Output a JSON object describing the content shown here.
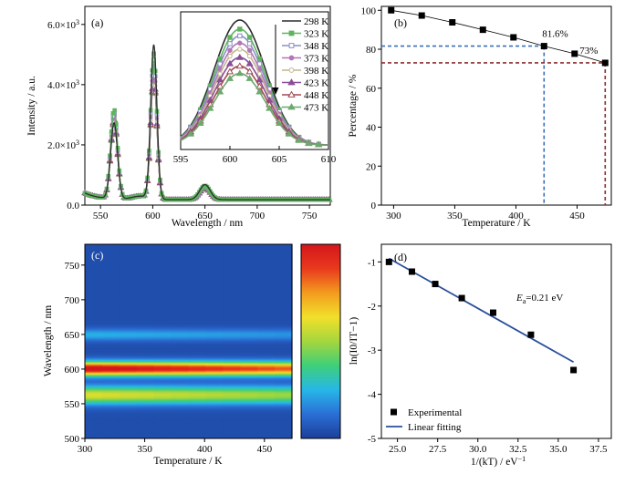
{
  "chart_data": [
    {
      "type": "line",
      "panel_label": "(a)",
      "xlabel": "Wavelength / nm",
      "ylabel": "Intensity / a.u.",
      "xlim": [
        535,
        770
      ],
      "ylim": [
        0,
        6600
      ],
      "x_ticks": [
        "550",
        "600",
        "650",
        "700",
        "750"
      ],
      "y_ticks": [
        {
          "base": "0.0",
          "exp": ""
        },
        {
          "base": "2.0×10",
          "exp": "3"
        },
        {
          "base": "4.0×10",
          "exp": "3"
        },
        {
          "base": "6.0×10",
          "exp": "3"
        }
      ],
      "peaks": [
        {
          "center": 563,
          "width": 3.3
        },
        {
          "center": 601,
          "width": 3.0
        },
        {
          "center": 650,
          "width": 5.0
        }
      ],
      "series": [
        {
          "name": "298 K",
          "color": "#2d2d2d",
          "marker": "none",
          "peak_heights": [
            2700,
            5300,
            680
          ]
        },
        {
          "name": "323 K",
          "color": "#5fb35f",
          "marker": "square",
          "peak_heights": [
            3150,
            5000,
            640
          ]
        },
        {
          "name": "348 K",
          "color": "#8a8fc4",
          "marker": "square-open",
          "peak_heights": [
            3050,
            4800,
            620
          ]
        },
        {
          "name": "373 K",
          "color": "#b277b7",
          "marker": "circle",
          "peak_heights": [
            2950,
            4600,
            600
          ]
        },
        {
          "name": "398 K",
          "color": "#c2b58e",
          "marker": "circle-open",
          "peak_heights": [
            2880,
            4450,
            590
          ]
        },
        {
          "name": "423 K",
          "color": "#8a4f96",
          "marker": "triangle",
          "peak_heights": [
            2820,
            4300,
            580
          ]
        },
        {
          "name": "448 K",
          "color": "#a04a50",
          "marker": "triangle-open",
          "peak_heights": [
            2770,
            4200,
            570
          ]
        },
        {
          "name": "473 K",
          "color": "#6ea86e",
          "marker": "triangle-fill",
          "peak_heights": [
            2740,
            4150,
            560
          ]
        }
      ],
      "inset": {
        "xlim": [
          595,
          610
        ],
        "x_ticks": [
          "595",
          "600",
          "605",
          "610"
        ],
        "peak_center": 601,
        "peak_width": 2.6,
        "series_heights": [
          6300,
          5860,
          5530,
          5180,
          4880,
          4480,
          4060,
          3700
        ],
        "baseline": 200,
        "ylim": [
          0,
          6700
        ]
      }
    },
    {
      "type": "line",
      "panel_label": "(b)",
      "xlabel": "Temperature / K",
      "ylabel": "Percentage / %",
      "xlim": [
        290,
        478
      ],
      "ylim": [
        0,
        102
      ],
      "x_ticks": [
        "300",
        "350",
        "400",
        "450"
      ],
      "y_ticks": [
        "0",
        "20",
        "40",
        "60",
        "80",
        "100"
      ],
      "x": [
        298,
        323,
        348,
        373,
        398,
        423,
        448,
        473
      ],
      "y": [
        100,
        97.3,
        93.8,
        90,
        86.1,
        81.6,
        77.7,
        73
      ],
      "annotations": [
        "81.6%",
        "73%"
      ],
      "guide_lines": [
        {
          "x": 423,
          "y": 81.6,
          "color": "#3a6fb5"
        },
        {
          "x": 473,
          "y": 73,
          "color": "#8b2d2d"
        }
      ]
    },
    {
      "type": "heatmap",
      "panel_label": "(c)",
      "xlabel": "Temperature / K",
      "ylabel": "Wavelength / nm",
      "xlim": [
        300,
        473
      ],
      "ylim": [
        500,
        780
      ],
      "x_ticks": [
        "300",
        "350",
        "400",
        "450"
      ],
      "y_ticks": [
        "500",
        "550",
        "600",
        "650",
        "700",
        "750"
      ],
      "bands": [
        {
          "center": 563,
          "width": 9,
          "level_start": 0.55,
          "level_end": 0.45
        },
        {
          "center": 601,
          "width": 7,
          "level_start": 1.0,
          "level_end": 0.8
        },
        {
          "center": 650,
          "width": 6,
          "level_start": 0.2,
          "level_end": 0.15
        }
      ],
      "colorscale": [
        "#1c3f99",
        "#2a6fd6",
        "#27b7e8",
        "#3ecf7a",
        "#a5d63d",
        "#f2e02a",
        "#f39b1e",
        "#e9391d",
        "#d4161c"
      ]
    },
    {
      "type": "scatter",
      "panel_label": "(d)",
      "xlabel": "1/(kT) / eV",
      "xlabel_exp": "−1",
      "ylabel": "ln(I0/IT−1)",
      "xlim": [
        24,
        38.3
      ],
      "ylim": [
        -5,
        -0.6
      ],
      "x_ticks": [
        "25.0",
        "27.5",
        "30.0",
        "32.5",
        "35.0",
        "37.5"
      ],
      "y_ticks": [
        "-5",
        "-4",
        "-3",
        "-2",
        "-1"
      ],
      "x": [
        24.47,
        25.9,
        27.35,
        29.0,
        30.95,
        33.3,
        35.95
      ],
      "y": [
        -1.0,
        -1.22,
        -1.5,
        -1.82,
        -2.15,
        -2.65,
        -3.45
      ],
      "fit": {
        "x": [
          24.47,
          35.95
        ],
        "y": [
          -0.92,
          -3.27
        ],
        "color": "#2a4f9b"
      },
      "annotation": {
        "base": "E",
        "sub": "a",
        "text": "=0.21 eV"
      },
      "legend": [
        {
          "label": "Experimental",
          "kind": "marker"
        },
        {
          "label": "Linear fitting",
          "kind": "line"
        }
      ]
    }
  ]
}
